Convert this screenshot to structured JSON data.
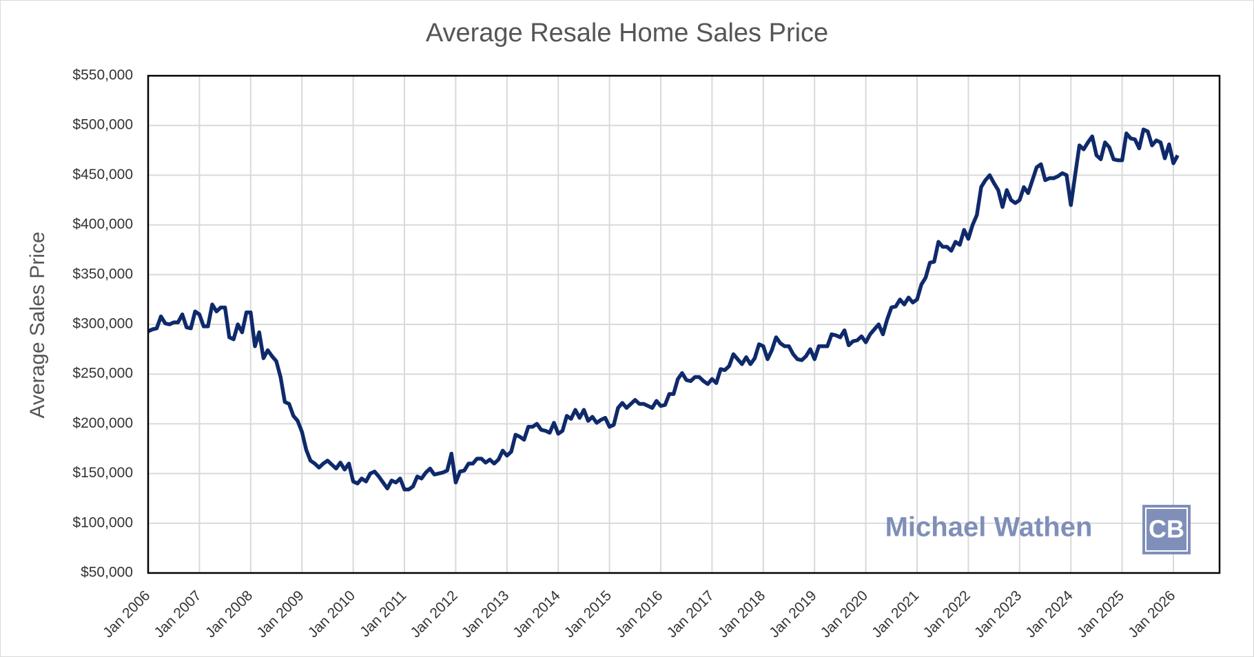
{
  "chart_data": {
    "type": "line",
    "title": "Average Resale Home Sales Price",
    "y_label": "Average Sales Price",
    "watermark": "Michael Wathen",
    "logo": "CB",
    "grid": true,
    "ylim": [
      50000,
      550000
    ],
    "yticks": [
      {
        "value": 50000,
        "label": "$50,000"
      },
      {
        "value": 100000,
        "label": "$100,000"
      },
      {
        "value": 150000,
        "label": "$150,000"
      },
      {
        "value": 200000,
        "label": "$200,000"
      },
      {
        "value": 250000,
        "label": "$250,000"
      },
      {
        "value": 300000,
        "label": "$300,000"
      },
      {
        "value": 350000,
        "label": "$350,000"
      },
      {
        "value": 400000,
        "label": "$400,000"
      },
      {
        "value": 450000,
        "label": "$450,000"
      },
      {
        "value": 500000,
        "label": "$500,000"
      },
      {
        "value": 550000,
        "label": "$550,000"
      }
    ],
    "categories": [
      "Jan 2006",
      null,
      null,
      null,
      null,
      null,
      null,
      null,
      null,
      null,
      null,
      null,
      "Jan 2007",
      null,
      null,
      null,
      null,
      null,
      null,
      null,
      null,
      null,
      null,
      null,
      "Jan 2008",
      null,
      null,
      null,
      null,
      null,
      null,
      null,
      null,
      null,
      null,
      null,
      "Jan 2009",
      null,
      null,
      null,
      null,
      null,
      null,
      null,
      null,
      null,
      null,
      null,
      "Jan 2010",
      null,
      null,
      null,
      null,
      null,
      null,
      null,
      null,
      null,
      null,
      null,
      "Jan 2011",
      null,
      null,
      null,
      null,
      null,
      null,
      null,
      null,
      null,
      null,
      null,
      "Jan 2012",
      null,
      null,
      null,
      null,
      null,
      null,
      null,
      null,
      null,
      null,
      null,
      "Jan 2013",
      null,
      null,
      null,
      null,
      null,
      null,
      null,
      null,
      null,
      null,
      null,
      "Jan 2014",
      null,
      null,
      null,
      null,
      null,
      null,
      null,
      null,
      null,
      null,
      null,
      "Jan 2015",
      null,
      null,
      null,
      null,
      null,
      null,
      null,
      null,
      null,
      null,
      null,
      "Jan 2016",
      null,
      null,
      null,
      null,
      null,
      null,
      null,
      null,
      null,
      null,
      null,
      "Jan 2017",
      null,
      null,
      null,
      null,
      null,
      null,
      null,
      null,
      null,
      null,
      null,
      "Jan 2018",
      null,
      null,
      null,
      null,
      null,
      null,
      null,
      null,
      null,
      null,
      null,
      "Jan 2019",
      null,
      null,
      null,
      null,
      null,
      null,
      null,
      null,
      null,
      null,
      null,
      "Jan 2020",
      null,
      null,
      null,
      null,
      null,
      null,
      null,
      null,
      null,
      null,
      null,
      "Jan 2021",
      null,
      null,
      null,
      null,
      null,
      null,
      null,
      null,
      null,
      null,
      null,
      "Jan 2022",
      null,
      null,
      null,
      null,
      null,
      null,
      null,
      null,
      null,
      null,
      null,
      "Jan 2023",
      null,
      null,
      null,
      null,
      null,
      null,
      null,
      null,
      null,
      null,
      null,
      "Jan 2024",
      null,
      null,
      null,
      null,
      null,
      null,
      null,
      null,
      null,
      null,
      null,
      "Jan 2025",
      null,
      null,
      null,
      null,
      null,
      null,
      null,
      null,
      null,
      null,
      null,
      "Jan 2026",
      null
    ],
    "series": [
      {
        "name": "Average Sales Price",
        "color": "#0f2a6b",
        "values": [
          293000,
          295000,
          296000,
          308000,
          301000,
          300000,
          302000,
          302000,
          310000,
          297000,
          296000,
          313000,
          310000,
          298000,
          298000,
          320000,
          313000,
          317000,
          317000,
          287000,
          285000,
          300000,
          292000,
          312000,
          312000,
          278000,
          292000,
          266000,
          274000,
          268000,
          263000,
          247000,
          222000,
          220000,
          208000,
          203000,
          192000,
          174000,
          163000,
          160000,
          156000,
          160000,
          163000,
          159000,
          155000,
          161000,
          154000,
          160000,
          142000,
          140000,
          145000,
          142000,
          150000,
          152000,
          147000,
          141000,
          135000,
          143000,
          141000,
          145000,
          134000,
          134000,
          137000,
          147000,
          145000,
          151000,
          155000,
          149000,
          150000,
          151000,
          153000,
          170000,
          141000,
          152000,
          153000,
          160000,
          160000,
          165000,
          165000,
          161000,
          164000,
          160000,
          164000,
          173000,
          168000,
          172000,
          189000,
          187000,
          184000,
          197000,
          197000,
          200000,
          194000,
          193000,
          191000,
          201000,
          190000,
          193000,
          208000,
          205000,
          214000,
          206000,
          214000,
          203000,
          207000,
          201000,
          204000,
          206000,
          197000,
          199000,
          216000,
          221000,
          216000,
          220000,
          224000,
          220000,
          220000,
          218000,
          216000,
          223000,
          218000,
          219000,
          230000,
          230000,
          245000,
          251000,
          244000,
          243000,
          247000,
          247000,
          243000,
          240000,
          245000,
          241000,
          255000,
          254000,
          258000,
          270000,
          265000,
          260000,
          267000,
          260000,
          266000,
          280000,
          278000,
          265000,
          274000,
          287000,
          281000,
          278000,
          278000,
          270000,
          265000,
          264000,
          268000,
          275000,
          265000,
          278000,
          278000,
          278000,
          290000,
          289000,
          287000,
          294000,
          279000,
          283000,
          284000,
          288000,
          282000,
          290000,
          295000,
          300000,
          290000,
          305000,
          317000,
          318000,
          325000,
          320000,
          327000,
          322000,
          325000,
          340000,
          347000,
          362000,
          363000,
          383000,
          378000,
          378000,
          374000,
          383000,
          380000,
          395000,
          386000,
          400000,
          410000,
          438000,
          445000,
          450000,
          442000,
          435000,
          418000,
          435000,
          425000,
          422000,
          425000,
          438000,
          432000,
          445000,
          458000,
          461000,
          445000,
          447000,
          447000,
          449000,
          452000,
          450000,
          420000,
          450000,
          480000,
          476000,
          483000,
          489000,
          470000,
          466000,
          483000,
          478000,
          466000,
          465000,
          465000,
          492000,
          487000,
          486000,
          477000,
          496000,
          494000,
          480000,
          485000,
          483000,
          467000,
          481000,
          462000,
          470000
        ]
      }
    ]
  }
}
